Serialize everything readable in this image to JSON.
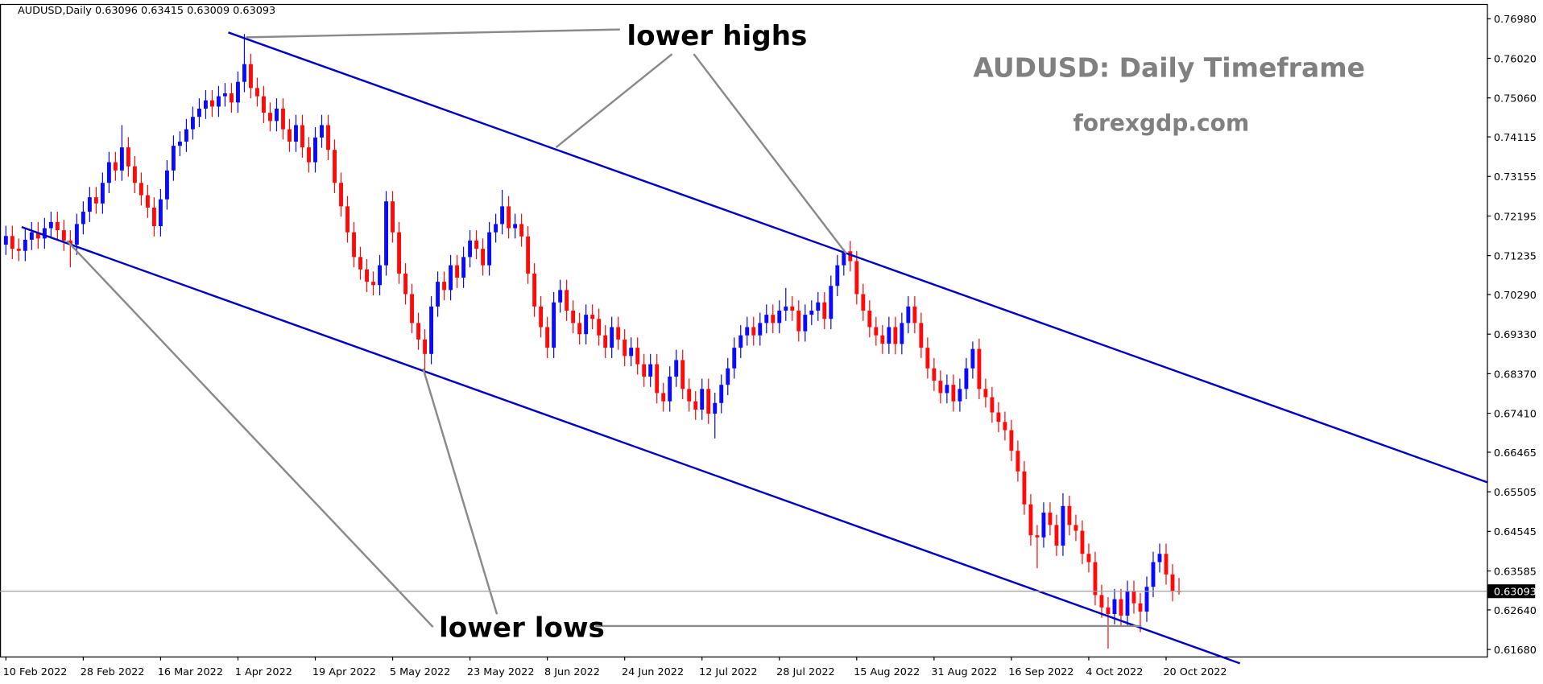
{
  "chart_data": {
    "type": "candlestick",
    "header": "AUDUSD,Daily  0.63096 0.63415 0.63009 0.63093",
    "title": "AUDUSD: Daily Timeframe",
    "subtitle": "forexgdp.com",
    "annotations": [
      "lower highs",
      "lower lows"
    ],
    "up_color": "#0a0aff",
    "down_color": "#ff0a0a",
    "open": [
      0.715,
      0.7171,
      0.714,
      0.7135,
      0.7162,
      0.718,
      0.7165,
      0.719,
      0.7205,
      0.7185,
      0.716,
      0.715,
      0.72,
      0.723,
      0.7265,
      0.725,
      0.73,
      0.735,
      0.733,
      0.7386,
      0.734,
      0.73,
      0.727,
      0.724,
      0.7195,
      0.726,
      0.733,
      0.739,
      0.74,
      0.743,
      0.746,
      0.748,
      0.75,
      0.7485,
      0.751,
      0.7517,
      0.7495,
      0.7545,
      0.7588,
      0.753,
      0.751,
      0.747,
      0.745,
      0.748,
      0.743,
      0.74,
      0.744,
      0.7386,
      0.735,
      0.741,
      0.744,
      0.738,
      0.73,
      0.7243,
      0.718,
      0.712,
      0.709,
      0.706,
      0.7052,
      0.71,
      0.7255,
      0.718,
      0.708,
      0.703,
      0.696,
      0.692,
      0.6885,
      0.7,
      0.706,
      0.704,
      0.71,
      0.707,
      0.712,
      0.716,
      0.714,
      0.71,
      0.718,
      0.72,
      0.7243,
      0.719,
      0.72,
      0.717,
      0.708,
      0.7,
      0.695,
      0.69,
      0.701,
      0.704,
      0.699,
      0.696,
      0.6933,
      0.698,
      0.697,
      0.693,
      0.69,
      0.695,
      0.692,
      0.688,
      0.69,
      0.686,
      0.683,
      0.686,
      0.679,
      0.677,
      0.683,
      0.687,
      0.68,
      0.677,
      0.675,
      0.68,
      0.674,
      0.6766,
      0.681,
      0.685,
      0.69,
      0.693,
      0.695,
      0.693,
      0.696,
      0.698,
      0.696,
      0.699,
      0.7,
      0.699,
      0.694,
      0.698,
      0.699,
      0.701,
      0.697,
      0.705,
      0.71,
      0.7134,
      0.711,
      0.703,
      0.699,
      0.695,
      0.693,
      0.691,
      0.695,
      0.6909,
      0.696,
      0.7,
      0.696,
      0.69,
      0.685,
      0.682,
      0.679,
      0.681,
      0.677,
      0.68,
      0.685,
      0.6897,
      0.68,
      0.678,
      0.6743,
      0.672,
      0.67,
      0.665,
      0.66,
      0.652,
      0.6445,
      0.644,
      0.65,
      0.647,
      0.642,
      0.6516,
      0.647,
      0.6456,
      0.64,
      0.638,
      0.63,
      0.627,
      0.6254,
      0.629,
      0.625,
      0.631,
      0.628,
      0.626,
      0.632,
      0.638,
      0.64,
      0.635,
      0.63096
    ],
    "high": [
      0.7196,
      0.7196,
      0.7165,
      0.7187,
      0.7205,
      0.7205,
      0.7215,
      0.723,
      0.723,
      0.721,
      0.7185,
      0.7225,
      0.7255,
      0.729,
      0.729,
      0.7325,
      0.7375,
      0.7375,
      0.744,
      0.7411,
      0.7365,
      0.7325,
      0.7295,
      0.7265,
      0.7285,
      0.7355,
      0.7415,
      0.7425,
      0.7455,
      0.7485,
      0.7505,
      0.7525,
      0.7525,
      0.7535,
      0.7542,
      0.7542,
      0.757,
      0.7661,
      0.7613,
      0.7555,
      0.7535,
      0.7495,
      0.7505,
      0.7505,
      0.7455,
      0.7465,
      0.7465,
      0.7411,
      0.7435,
      0.7465,
      0.7465,
      0.7405,
      0.7325,
      0.7268,
      0.7205,
      0.7145,
      0.7115,
      0.7085,
      0.7125,
      0.728,
      0.728,
      0.7205,
      0.7105,
      0.7055,
      0.6985,
      0.6945,
      0.7025,
      0.7085,
      0.7085,
      0.7125,
      0.7125,
      0.7145,
      0.7185,
      0.7185,
      0.7165,
      0.7205,
      0.7225,
      0.7283,
      0.7268,
      0.7225,
      0.7225,
      0.7195,
      0.7105,
      0.7025,
      0.6975,
      0.7035,
      0.7065,
      0.7065,
      0.7015,
      0.6985,
      0.7005,
      0.7005,
      0.6995,
      0.6955,
      0.6975,
      0.6975,
      0.6945,
      0.6925,
      0.6925,
      0.6885,
      0.6885,
      0.6885,
      0.6815,
      0.6855,
      0.6895,
      0.6895,
      0.6825,
      0.6795,
      0.6825,
      0.6825,
      0.6791,
      0.6835,
      0.6875,
      0.6925,
      0.6955,
      0.6975,
      0.6975,
      0.6985,
      0.7005,
      0.7005,
      0.7015,
      0.7045,
      0.7025,
      0.7015,
      0.7005,
      0.7015,
      0.7035,
      0.7035,
      0.7075,
      0.7125,
      0.714,
      0.7159,
      0.7135,
      0.7055,
      0.7015,
      0.6975,
      0.6955,
      0.6975,
      0.6975,
      0.6985,
      0.7025,
      0.7025,
      0.6985,
      0.6925,
      0.6875,
      0.6845,
      0.6835,
      0.6835,
      0.6825,
      0.6875,
      0.6915,
      0.6922,
      0.6825,
      0.6805,
      0.6768,
      0.6745,
      0.6725,
      0.6675,
      0.6625,
      0.6545,
      0.647,
      0.6525,
      0.6525,
      0.6495,
      0.6547,
      0.6541,
      0.6495,
      0.6481,
      0.6425,
      0.6405,
      0.6325,
      0.6295,
      0.6315,
      0.6315,
      0.6335,
      0.6335,
      0.6305,
      0.6345,
      0.6405,
      0.6425,
      0.6425,
      0.6375,
      0.63415
    ],
    "low": [
      0.7125,
      0.7115,
      0.711,
      0.711,
      0.7137,
      0.714,
      0.714,
      0.7165,
      0.716,
      0.7135,
      0.7095,
      0.7125,
      0.7175,
      0.7205,
      0.7225,
      0.7225,
      0.7275,
      0.7305,
      0.7305,
      0.7315,
      0.7275,
      0.7245,
      0.7215,
      0.717,
      0.717,
      0.7235,
      0.7305,
      0.7365,
      0.7375,
      0.7405,
      0.7435,
      0.7455,
      0.746,
      0.746,
      0.7485,
      0.747,
      0.747,
      0.752,
      0.7505,
      0.7485,
      0.7445,
      0.7425,
      0.7425,
      0.7405,
      0.7375,
      0.7375,
      0.7361,
      0.7325,
      0.7325,
      0.7385,
      0.7355,
      0.7275,
      0.7218,
      0.7155,
      0.7095,
      0.7065,
      0.7035,
      0.7027,
      0.7027,
      0.7075,
      0.7155,
      0.7055,
      0.7005,
      0.6935,
      0.6895,
      0.683,
      0.686,
      0.6975,
      0.7015,
      0.7015,
      0.7045,
      0.7045,
      0.7095,
      0.7115,
      0.7075,
      0.7075,
      0.7155,
      0.7175,
      0.7165,
      0.7165,
      0.7145,
      0.7055,
      0.6975,
      0.6925,
      0.6875,
      0.6875,
      0.6985,
      0.6965,
      0.6935,
      0.6908,
      0.6908,
      0.6945,
      0.6905,
      0.6875,
      0.6875,
      0.6895,
      0.6855,
      0.6855,
      0.6835,
      0.6805,
      0.6805,
      0.6765,
      0.6745,
      0.6745,
      0.6805,
      0.6775,
      0.6745,
      0.6725,
      0.6725,
      0.6715,
      0.668,
      0.6741,
      0.6785,
      0.6825,
      0.6875,
      0.6905,
      0.6905,
      0.6905,
      0.6935,
      0.6935,
      0.6935,
      0.6965,
      0.6965,
      0.6915,
      0.6915,
      0.6955,
      0.6965,
      0.6945,
      0.6945,
      0.7025,
      0.7075,
      0.7085,
      0.7005,
      0.6965,
      0.6925,
      0.6905,
      0.6885,
      0.6885,
      0.6884,
      0.6884,
      0.6935,
      0.6935,
      0.6875,
      0.6825,
      0.6795,
      0.6765,
      0.6765,
      0.6745,
      0.6745,
      0.6775,
      0.6825,
      0.6775,
      0.6755,
      0.6718,
      0.6695,
      0.6675,
      0.6625,
      0.6575,
      0.6495,
      0.642,
      0.6365,
      0.6415,
      0.6445,
      0.6395,
      0.6395,
      0.6445,
      0.6431,
      0.6375,
      0.6355,
      0.6275,
      0.6245,
      0.617,
      0.6229,
      0.6225,
      0.6225,
      0.6255,
      0.621,
      0.6235,
      0.6295,
      0.6355,
      0.6325,
      0.6285,
      0.63009
    ],
    "close": [
      0.7171,
      0.714,
      0.7135,
      0.7162,
      0.718,
      0.7165,
      0.719,
      0.7205,
      0.7185,
      0.716,
      0.715,
      0.72,
      0.723,
      0.7265,
      0.725,
      0.73,
      0.735,
      0.733,
      0.7386,
      0.734,
      0.73,
      0.727,
      0.724,
      0.7195,
      0.726,
      0.733,
      0.739,
      0.74,
      0.743,
      0.746,
      0.748,
      0.75,
      0.7485,
      0.751,
      0.7517,
      0.7495,
      0.7545,
      0.7588,
      0.753,
      0.751,
      0.747,
      0.745,
      0.748,
      0.743,
      0.74,
      0.744,
      0.7386,
      0.735,
      0.741,
      0.744,
      0.738,
      0.73,
      0.7243,
      0.718,
      0.712,
      0.709,
      0.706,
      0.7052,
      0.71,
      0.7255,
      0.718,
      0.708,
      0.703,
      0.696,
      0.692,
      0.6885,
      0.7,
      0.706,
      0.704,
      0.71,
      0.707,
      0.712,
      0.716,
      0.714,
      0.71,
      0.718,
      0.72,
      0.7243,
      0.719,
      0.72,
      0.717,
      0.708,
      0.7,
      0.695,
      0.69,
      0.701,
      0.704,
      0.699,
      0.696,
      0.6933,
      0.698,
      0.697,
      0.693,
      0.69,
      0.695,
      0.692,
      0.688,
      0.69,
      0.686,
      0.683,
      0.686,
      0.679,
      0.677,
      0.683,
      0.687,
      0.68,
      0.677,
      0.675,
      0.68,
      0.674,
      0.6766,
      0.681,
      0.685,
      0.69,
      0.693,
      0.695,
      0.693,
      0.696,
      0.698,
      0.696,
      0.699,
      0.7,
      0.699,
      0.694,
      0.698,
      0.699,
      0.701,
      0.697,
      0.705,
      0.71,
      0.7134,
      0.711,
      0.703,
      0.699,
      0.695,
      0.693,
      0.691,
      0.695,
      0.6909,
      0.696,
      0.7,
      0.696,
      0.69,
      0.685,
      0.682,
      0.679,
      0.681,
      0.677,
      0.68,
      0.685,
      0.6897,
      0.68,
      0.678,
      0.6743,
      0.672,
      0.67,
      0.665,
      0.66,
      0.652,
      0.6445,
      0.644,
      0.65,
      0.647,
      0.642,
      0.6516,
      0.647,
      0.6456,
      0.64,
      0.638,
      0.63,
      0.627,
      0.6254,
      0.629,
      0.625,
      0.631,
      0.628,
      0.626,
      0.632,
      0.638,
      0.64,
      0.635,
      0.631,
      0.63093
    ],
    "ylim": [
      0.6151,
      0.7734
    ],
    "yticks": [
      {
        "value": 0.7698,
        "label": "0.76980"
      },
      {
        "value": 0.7602,
        "label": "0.76020"
      },
      {
        "value": 0.7506,
        "label": "0.75060"
      },
      {
        "value": 0.74115,
        "label": "0.74115"
      },
      {
        "value": 0.73155,
        "label": "0.73155"
      },
      {
        "value": 0.72195,
        "label": "0.72195"
      },
      {
        "value": 0.71235,
        "label": "0.71235"
      },
      {
        "value": 0.7029,
        "label": "0.70290"
      },
      {
        "value": 0.6933,
        "label": "0.69330"
      },
      {
        "value": 0.6837,
        "label": "0.68370"
      },
      {
        "value": 0.6741,
        "label": "0.67410"
      },
      {
        "value": 0.66465,
        "label": "0.66465"
      },
      {
        "value": 0.65505,
        "label": "0.65505"
      },
      {
        "value": 0.64545,
        "label": "0.64545"
      },
      {
        "value": 0.63585,
        "label": "0.63585"
      },
      {
        "value": 0.6264,
        "label": "0.62640"
      },
      {
        "value": 0.6168,
        "label": "0.61680"
      }
    ],
    "last_price": {
      "value": 0.63093,
      "label": "0.63093"
    },
    "xticks": [
      {
        "value": 0,
        "label": "10 Feb 2022"
      },
      {
        "value": 12,
        "label": "28 Feb 2022"
      },
      {
        "value": 24,
        "label": "16 Mar 2022"
      },
      {
        "value": 36,
        "label": "1 Apr 2022"
      },
      {
        "value": 48,
        "label": "19 Apr 2022"
      },
      {
        "value": 60,
        "label": "5 May 2022"
      },
      {
        "value": 72,
        "label": "23 May 2022"
      },
      {
        "value": 84,
        "label": "8 Jun 2022"
      },
      {
        "value": 96,
        "label": "24 Jun 2022"
      },
      {
        "value": 108,
        "label": "12 Jul 2022"
      },
      {
        "value": 120,
        "label": "28 Jul 2022"
      },
      {
        "value": 132,
        "label": "15 Aug 2022"
      },
      {
        "value": 144,
        "label": "31 Aug 2022"
      },
      {
        "value": 156,
        "label": "16 Sep 2022"
      },
      {
        "value": 168,
        "label": "4 Oct 2022"
      },
      {
        "value": 180,
        "label": "20 Oct 2022"
      }
    ]
  }
}
